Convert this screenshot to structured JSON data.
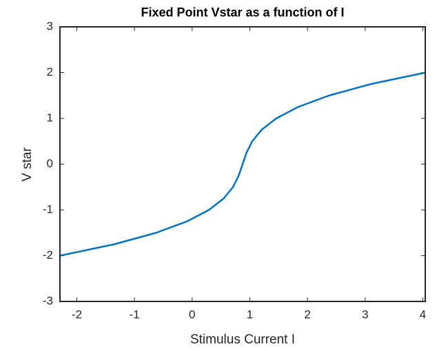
{
  "chart_data": {
    "type": "line",
    "title": "Fixed Point Vstar as a function of I",
    "xlabel": "Stimulus Current  I",
    "ylabel": "V star",
    "x": [
      -2.292,
      -1.349,
      -0.625,
      -0.089,
      0.292,
      0.547,
      0.708,
      0.807,
      0.875,
      0.943,
      1.042,
      1.203,
      1.458,
      1.839,
      2.375,
      3.099,
      4.042
    ],
    "series": [
      {
        "color": "#0072bd",
        "values": [
          -2,
          -1.75,
          -1.5,
          -1.25,
          -1,
          -0.75,
          -0.5,
          -0.25,
          0,
          0.25,
          0.5,
          0.75,
          1,
          1.25,
          1.5,
          1.75,
          2
        ]
      }
    ],
    "xlim": [
      -2.292,
      4.042
    ],
    "ylim": [
      -3,
      3
    ],
    "xticks": [
      -2,
      -1,
      0,
      1,
      2,
      3,
      4
    ],
    "yticks": [
      -3,
      -2,
      -1,
      0,
      1,
      2,
      3
    ]
  }
}
